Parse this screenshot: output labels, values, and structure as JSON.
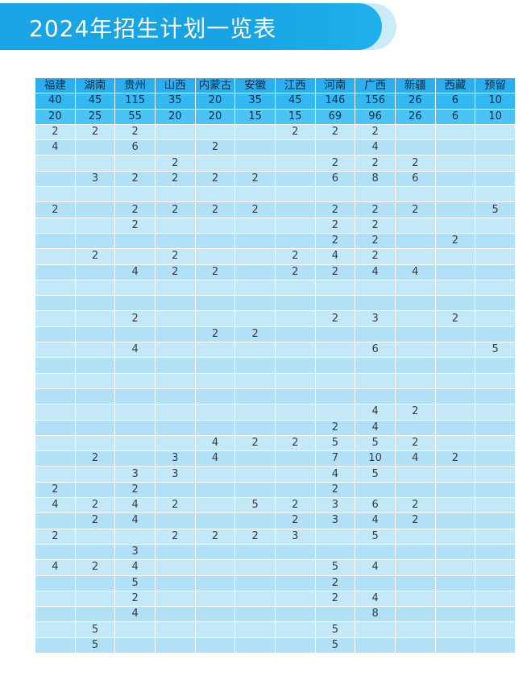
{
  "header": {
    "title": "2024年招生计划一览表"
  },
  "colors": {
    "banner": "#1aa6e6",
    "header_row": "#2aaef0",
    "row_light": "#c3e9f9",
    "row_dark": "#b2e1f7"
  },
  "table": {
    "columns": [
      "福建",
      "湖南",
      "贵州",
      "山西",
      "内蒙古",
      "安徽",
      "江西",
      "河南",
      "广西",
      "新疆",
      "西藏",
      "预留"
    ],
    "totals": [
      "40",
      "45",
      "115",
      "35",
      "20",
      "35",
      "45",
      "146",
      "156",
      "26",
      "6",
      "10"
    ],
    "subtotals": [
      "20",
      "25",
      "55",
      "20",
      "20",
      "15",
      "15",
      "69",
      "96",
      "26",
      "6",
      "10"
    ],
    "rows": [
      [
        "2",
        "2",
        "2",
        "",
        "",
        "",
        "2",
        "2",
        "2",
        "",
        "",
        ""
      ],
      [
        "4",
        "",
        "6",
        "",
        "2",
        "",
        "",
        "",
        "4",
        "",
        "",
        ""
      ],
      [
        "",
        "",
        "",
        "2",
        "",
        "",
        "",
        "2",
        "2",
        "2",
        "",
        ""
      ],
      [
        "",
        "3",
        "2",
        "2",
        "2",
        "2",
        "",
        "6",
        "8",
        "6",
        "",
        ""
      ],
      [
        "",
        "",
        "",
        "",
        "",
        "",
        "",
        "",
        "",
        "",
        "",
        ""
      ],
      [
        "2",
        "",
        "2",
        "2",
        "2",
        "2",
        "",
        "2",
        "2",
        "2",
        "",
        "5"
      ],
      [
        "",
        "",
        "2",
        "",
        "",
        "",
        "",
        "2",
        "2",
        "",
        "",
        ""
      ],
      [
        "",
        "",
        "",
        "",
        "",
        "",
        "",
        "2",
        "2",
        "",
        "2",
        ""
      ],
      [
        "",
        "2",
        "",
        "2",
        "",
        "",
        "2",
        "4",
        "2",
        "",
        "",
        ""
      ],
      [
        "",
        "",
        "4",
        "2",
        "2",
        "",
        "2",
        "2",
        "4",
        "4",
        "",
        ""
      ],
      [
        "",
        "",
        "",
        "",
        "",
        "",
        "",
        "",
        "",
        "",
        "",
        ""
      ],
      [
        "",
        "",
        "",
        "",
        "",
        "",
        "",
        "",
        "",
        "",
        "",
        ""
      ],
      [
        "",
        "",
        "2",
        "",
        "",
        "",
        "",
        "2",
        "3",
        "",
        "2",
        ""
      ],
      [
        "",
        "",
        "",
        "",
        "2",
        "2",
        "",
        "",
        "",
        "",
        "",
        ""
      ],
      [
        "",
        "",
        "4",
        "",
        "",
        "",
        "",
        "",
        "6",
        "",
        "",
        "5"
      ],
      [
        "",
        "",
        "",
        "",
        "",
        "",
        "",
        "",
        "",
        "",
        "",
        ""
      ],
      [
        "",
        "",
        "",
        "",
        "",
        "",
        "",
        "",
        "",
        "",
        "",
        ""
      ],
      [
        "",
        "",
        "",
        "",
        "",
        "",
        "",
        "",
        "",
        "",
        "",
        ""
      ],
      [
        "",
        "",
        "",
        "",
        "",
        "",
        "",
        "",
        "4",
        "2",
        "",
        ""
      ],
      [
        "",
        "",
        "",
        "",
        "",
        "",
        "",
        "2",
        "4",
        "",
        "",
        ""
      ],
      [
        "",
        "",
        "",
        "",
        "4",
        "2",
        "2",
        "5",
        "5",
        "2",
        "",
        ""
      ],
      [
        "",
        "2",
        "",
        "3",
        "4",
        "",
        "",
        "7",
        "10",
        "4",
        "2",
        ""
      ],
      [
        "",
        "",
        "3",
        "3",
        "",
        "",
        "",
        "4",
        "5",
        "",
        "",
        ""
      ],
      [
        "2",
        "",
        "2",
        "",
        "",
        "",
        "",
        "2",
        "",
        "",
        "",
        ""
      ],
      [
        "4",
        "2",
        "4",
        "2",
        "",
        "5",
        "2",
        "3",
        "6",
        "2",
        "",
        ""
      ],
      [
        "",
        "2",
        "4",
        "",
        "",
        "",
        "2",
        "3",
        "4",
        "2",
        "",
        ""
      ],
      [
        "2",
        "",
        "",
        "2",
        "2",
        "2",
        "3",
        "",
        "5",
        "",
        "",
        ""
      ],
      [
        "",
        "",
        "3",
        "",
        "",
        "",
        "",
        "",
        "",
        "",
        "",
        ""
      ],
      [
        "4",
        "2",
        "4",
        "",
        "",
        "",
        "",
        "5",
        "4",
        "",
        "",
        ""
      ],
      [
        "",
        "",
        "5",
        "",
        "",
        "",
        "",
        "2",
        "",
        "",
        "",
        ""
      ],
      [
        "",
        "",
        "2",
        "",
        "",
        "",
        "",
        "2",
        "4",
        "",
        "",
        ""
      ],
      [
        "",
        "",
        "4",
        "",
        "",
        "",
        "",
        "",
        "8",
        "",
        "",
        ""
      ],
      [
        "",
        "5",
        "",
        "",
        "",
        "",
        "",
        "5",
        "",
        "",
        "",
        ""
      ],
      [
        "",
        "5",
        "",
        "",
        "",
        "",
        "",
        "5",
        "",
        "",
        "",
        ""
      ]
    ]
  }
}
